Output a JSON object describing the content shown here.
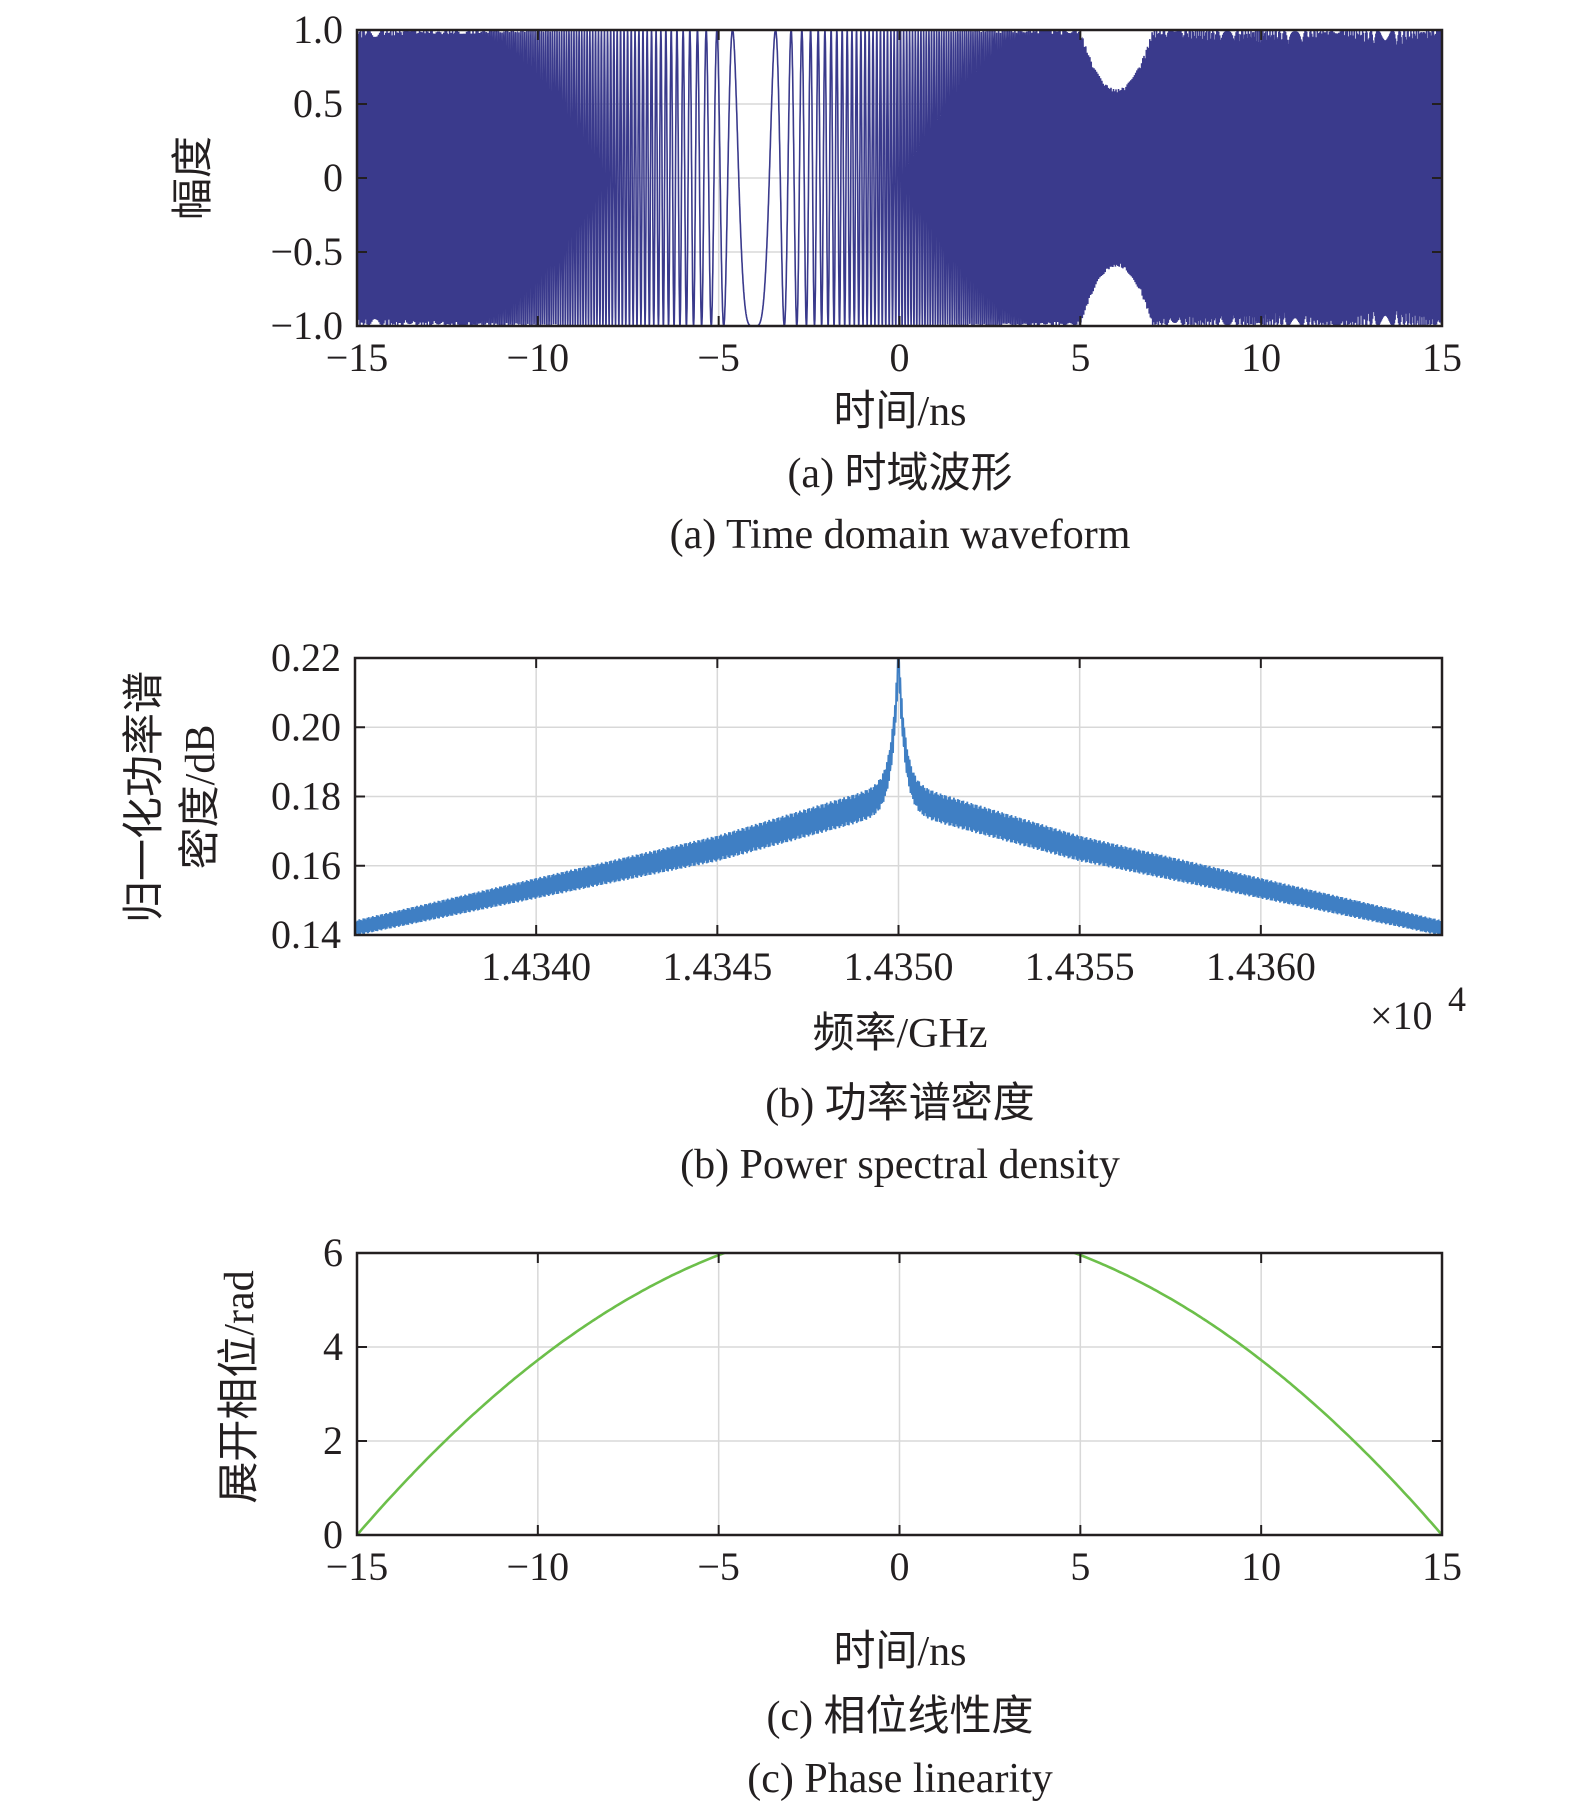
{
  "chart_data": [
    {
      "id": "a",
      "type": "line",
      "xlabel": "时间/ns",
      "ylabel": "幅度",
      "xlim": [
        -15,
        15
      ],
      "ylim": [
        -1.0,
        1.0
      ],
      "x_ticks": [
        -15,
        -10,
        -5,
        0,
        5,
        10,
        15
      ],
      "x_tick_labels": [
        "−15",
        "−10",
        "−5",
        "0",
        "5",
        "10",
        "15"
      ],
      "y_ticks": [
        -1.0,
        -0.5,
        0,
        0.5,
        1.0
      ],
      "y_tick_labels": [
        "−1.0",
        "−0.5",
        "0",
        "0.5",
        "1.0"
      ],
      "grid": true,
      "signal": "chirp",
      "envelope_lobes": [
        {
          "t": -14.0,
          "amp": 1.0
        },
        {
          "t": 6.0,
          "amp": 0.6
        }
      ],
      "color": "#3a3a8c",
      "caption_cn": "(a) 时域波形",
      "caption_en": "(a) Time domain waveform"
    },
    {
      "id": "b",
      "type": "line",
      "xlabel": "频率/GHz",
      "ylabel_line1": "归一化功率谱",
      "ylabel_line2": "密度/dB",
      "x_multiplier": "×10",
      "x_multiplier_exp": "4",
      "xlim": [
        1.4335,
        1.4365
      ],
      "ylim": [
        0.14,
        0.22
      ],
      "x_ticks": [
        1.434,
        1.4345,
        1.435,
        1.4355,
        1.436
      ],
      "x_tick_labels": [
        "1.4340",
        "1.4345",
        "1.4350",
        "1.4355",
        "1.4360"
      ],
      "y_ticks": [
        0.14,
        0.16,
        0.18,
        0.2,
        0.22
      ],
      "y_tick_labels": [
        "0.14",
        "0.16",
        "0.18",
        "0.20",
        "0.22"
      ],
      "grid": true,
      "peak": {
        "x": 1.435,
        "y": 0.22
      },
      "edges": [
        {
          "x": 1.4335,
          "y": 0.142
        },
        {
          "x": 1.4365,
          "y": 0.142
        }
      ],
      "shoulders": [
        {
          "x": 1.4345,
          "y": 0.165
        },
        {
          "x": 1.4355,
          "y": 0.165
        }
      ],
      "color": "#3f7fc4",
      "caption_cn": "(b) 功率谱密度",
      "caption_en": "(b) Power spectral density"
    },
    {
      "id": "c",
      "type": "line",
      "xlabel": "时间/ns",
      "ylabel": "展开相位/rad",
      "xlim": [
        -15,
        15
      ],
      "ylim": [
        0,
        6
      ],
      "x_ticks": [
        -15,
        -10,
        -5,
        0,
        5,
        10,
        15
      ],
      "x_tick_labels": [
        "−15",
        "−10",
        "−5",
        "0",
        "5",
        "10",
        "15"
      ],
      "y_ticks": [
        0,
        2,
        4,
        6
      ],
      "y_tick_labels": [
        "0",
        "2",
        "4",
        "6"
      ],
      "grid": true,
      "points": [
        {
          "x": -15,
          "y": 0.0
        },
        {
          "x": -10,
          "y": 3.5
        },
        {
          "x": -5,
          "y": 5.5
        },
        {
          "x": -3,
          "y": 6.0
        },
        {
          "x": 0,
          "y": 6.7
        },
        {
          "x": 3,
          "y": 6.0
        },
        {
          "x": 5,
          "y": 5.5
        },
        {
          "x": 10,
          "y": 3.5
        },
        {
          "x": 15,
          "y": 0.0
        }
      ],
      "color": "#6cbf4a",
      "caption_cn": "(c) 相位线性度",
      "caption_en": "(c) Phase linearity"
    }
  ]
}
